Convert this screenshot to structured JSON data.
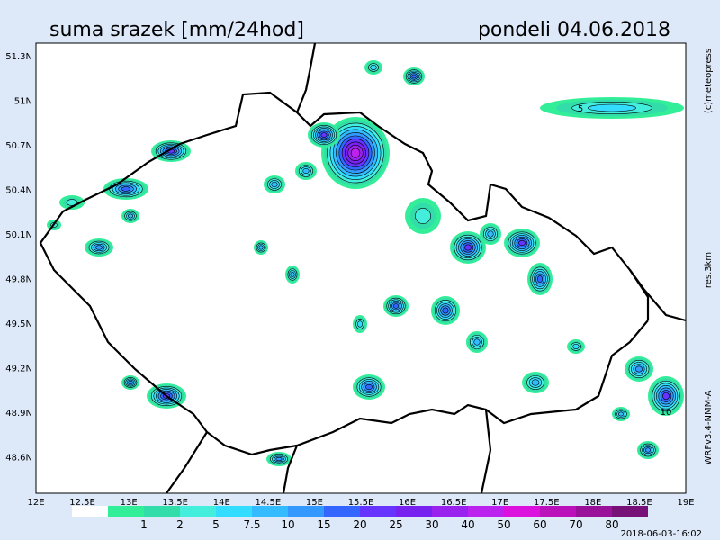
{
  "header": {
    "title": "suma srazek [mm/24hod]",
    "date": "pondeli 04.06.2018"
  },
  "lat_labels": [
    "51.3N",
    "51N",
    "50.7N",
    "50.4N",
    "50.1N",
    "49.8N",
    "49.5N",
    "49.2N",
    "48.9N",
    "48.6N"
  ],
  "lon_labels": [
    "12E",
    "12.5E",
    "13E",
    "13.5E",
    "14E",
    "14.5E",
    "15E",
    "15.5E",
    "16E",
    "16.5E",
    "17E",
    "17.5E",
    "18E",
    "18.5E",
    "19E"
  ],
  "contour_labels": [
    "5",
    "10"
  ],
  "side_texts": [
    "(c)meteopress",
    "res.3km",
    "WRFv3.4-NMM-A"
  ],
  "colorbar": {
    "labels": [
      "1",
      "2",
      "5",
      "7.5",
      "10",
      "15",
      "20",
      "25",
      "30",
      "40",
      "50",
      "60",
      "70",
      "80"
    ],
    "colors": [
      "#ffffff",
      "#33ee99",
      "#33ddaa",
      "#44eedd",
      "#33ddff",
      "#33bbff",
      "#3399ff",
      "#3366ff",
      "#6633ff",
      "#7722ee",
      "#9922ee",
      "#bb22ee",
      "#dd11dd",
      "#bb11bb",
      "#991199",
      "#771177"
    ]
  },
  "timestamp": "2018-06-03-16:02"
}
